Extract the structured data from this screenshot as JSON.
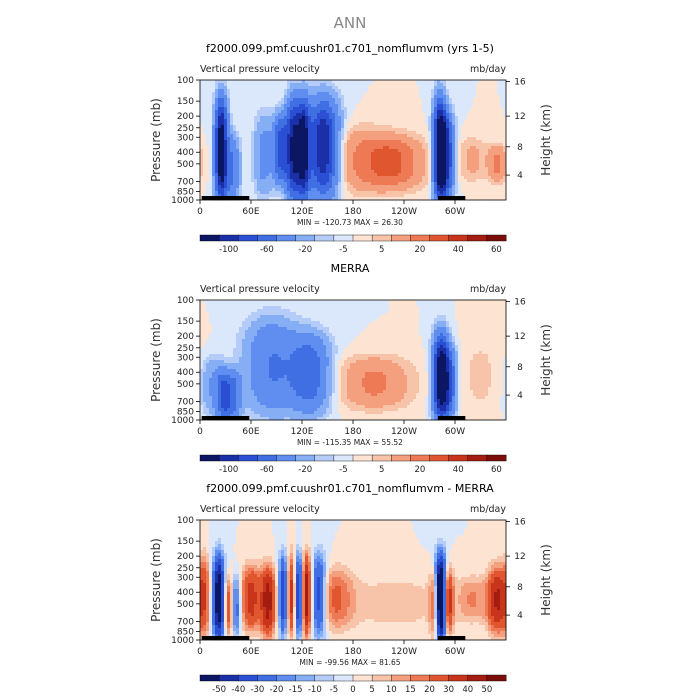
{
  "figure_title": "ANN",
  "colors": {
    "palette": [
      "#0b1763",
      "#1b2fa8",
      "#2a4fd2",
      "#3f6fe3",
      "#5f8ef0",
      "#86aef5",
      "#b4ccf7",
      "#dbe7fb",
      "#fce3d2",
      "#f8c4a9",
      "#f4a07f",
      "#ee7a55",
      "#e0562f",
      "#c9351a",
      "#a51d10",
      "#7a0d08"
    ]
  },
  "chart_data": [
    {
      "type": "heatmap",
      "title": "f2000.099.pmf.cuushr01.c701_nomflumvm (yrs 1-5)",
      "left_label": "Vertical pressure velocity",
      "right_label": "mb/day",
      "ylabel": "Pressure (mb)",
      "ylabel_right": "Height (km)",
      "pressure_ticks": [
        "100",
        "150",
        "200",
        "250",
        "300",
        "400",
        "500",
        "700",
        "850",
        "1000"
      ],
      "height_ticks": [
        "16",
        "12",
        "8",
        "4"
      ],
      "lon_ticks": [
        "0",
        "60E",
        "120E",
        "180",
        "120W",
        "60W"
      ],
      "min": "-120.73",
      "max": "26.30",
      "colorbar_labels": [
        "-100",
        "-60",
        "-20",
        "-5",
        "5",
        "20",
        "40",
        "60"
      ],
      "levels": [
        -100,
        -80,
        -60,
        -40,
        -20,
        -10,
        -5,
        0,
        5,
        10,
        20,
        30,
        40,
        50,
        60
      ],
      "features": [
        {
          "lon": 25,
          "p_top": 150,
          "p_bot": 1000,
          "w": 5,
          "amp": -120
        },
        {
          "lon": 38,
          "p_top": 300,
          "p_bot": 1000,
          "w": 6,
          "amp": -40
        },
        {
          "lon": 75,
          "p_top": 200,
          "p_bot": 900,
          "w": 8,
          "amp": -25
        },
        {
          "lon": 95,
          "p_top": 200,
          "p_bot": 700,
          "w": 6,
          "amp": -70
        },
        {
          "lon": 110,
          "p_top": 150,
          "p_bot": 950,
          "w": 6,
          "amp": -100
        },
        {
          "lon": 122,
          "p_top": 150,
          "p_bot": 950,
          "w": 5,
          "amp": -100
        },
        {
          "lon": 145,
          "p_top": 150,
          "p_bot": 900,
          "w": 12,
          "amp": -100
        },
        {
          "lon": 190,
          "p_top": 250,
          "p_bot": 850,
          "w": 30,
          "amp": 18
        },
        {
          "lon": 230,
          "p_top": 300,
          "p_bot": 800,
          "w": 25,
          "amp": 26
        },
        {
          "lon": 282,
          "p_top": 150,
          "p_bot": 1000,
          "w": 5,
          "amp": -120
        },
        {
          "lon": 290,
          "p_top": 200,
          "p_bot": 900,
          "w": 6,
          "amp": -80
        },
        {
          "lon": 320,
          "p_top": 300,
          "p_bot": 700,
          "w": 12,
          "amp": 12
        },
        {
          "lon": 350,
          "p_top": 350,
          "p_bot": 700,
          "w": 8,
          "amp": 22
        }
      ]
    },
    {
      "type": "heatmap",
      "title": "MERRA",
      "left_label": "Vertical pressure velocity",
      "right_label": "mb/day",
      "ylabel": "Pressure (mb)",
      "ylabel_right": "Height (km)",
      "pressure_ticks": [
        "100",
        "150",
        "200",
        "250",
        "300",
        "400",
        "500",
        "700",
        "850",
        "1000"
      ],
      "height_ticks": [
        "16",
        "12",
        "8",
        "4"
      ],
      "lon_ticks": [
        "0",
        "60E",
        "120E",
        "180",
        "120W",
        "60W"
      ],
      "min": "-115.35",
      "max": "55.52",
      "colorbar_labels": [
        "-100",
        "-60",
        "-20",
        "-5",
        "5",
        "20",
        "40",
        "60"
      ],
      "levels": [
        -100,
        -80,
        -60,
        -40,
        -20,
        -10,
        -5,
        0,
        5,
        10,
        20,
        30,
        40,
        50,
        60
      ],
      "features": [
        {
          "lon": 15,
          "p_top": 300,
          "p_bot": 900,
          "w": 10,
          "amp": -20
        },
        {
          "lon": 28,
          "p_top": 400,
          "p_bot": 1000,
          "w": 6,
          "amp": -60
        },
        {
          "lon": 40,
          "p_top": 400,
          "p_bot": 1000,
          "w": 6,
          "amp": -40
        },
        {
          "lon": 85,
          "p_top": 150,
          "p_bot": 850,
          "w": 22,
          "amp": -40
        },
        {
          "lon": 130,
          "p_top": 200,
          "p_bot": 850,
          "w": 16,
          "amp": -50
        },
        {
          "lon": 205,
          "p_top": 300,
          "p_bot": 800,
          "w": 30,
          "amp": 22
        },
        {
          "lon": 283,
          "p_top": 200,
          "p_bot": 1000,
          "w": 6,
          "amp": -115
        },
        {
          "lon": 293,
          "p_top": 250,
          "p_bot": 900,
          "w": 6,
          "amp": -60
        },
        {
          "lon": 330,
          "p_top": 200,
          "p_bot": 900,
          "w": 20,
          "amp": 6
        }
      ]
    },
    {
      "type": "heatmap",
      "title": "f2000.099.pmf.cuushr01.c701_nomflumvm - MERRA",
      "left_label": "Vertical pressure velocity",
      "right_label": "mb/day",
      "ylabel": "Pressure (mb)",
      "ylabel_right": "Height (km)",
      "pressure_ticks": [
        "100",
        "150",
        "200",
        "250",
        "300",
        "400",
        "500",
        "700",
        "850",
        "1000"
      ],
      "height_ticks": [
        "16",
        "12",
        "8",
        "4"
      ],
      "lon_ticks": [
        "0",
        "60E",
        "120E",
        "180",
        "120W",
        "60W"
      ],
      "min": "-99.56",
      "max": "81.65",
      "colorbar_labels": [
        "-50",
        "-40",
        "-30",
        "-20",
        "-15",
        "-10",
        "-5",
        "0",
        "5",
        "10",
        "15",
        "20",
        "30",
        "40",
        "50"
      ],
      "levels": [
        -50,
        -40,
        -30,
        -20,
        -15,
        -10,
        -5,
        0,
        5,
        10,
        15,
        20,
        30,
        40,
        50
      ],
      "features": [
        {
          "lon": 5,
          "p_top": 200,
          "p_bot": 900,
          "w": 5,
          "amp": 25
        },
        {
          "lon": 22,
          "p_top": 200,
          "p_bot": 1000,
          "w": 5,
          "amp": -60
        },
        {
          "lon": 34,
          "p_top": 300,
          "p_bot": 900,
          "w": 4,
          "amp": 30
        },
        {
          "lon": 42,
          "p_top": 300,
          "p_bot": 900,
          "w": 4,
          "amp": -30
        },
        {
          "lon": 60,
          "p_top": 250,
          "p_bot": 800,
          "w": 8,
          "amp": 35
        },
        {
          "lon": 80,
          "p_top": 250,
          "p_bot": 900,
          "w": 6,
          "amp": 45
        },
        {
          "lon": 98,
          "p_top": 200,
          "p_bot": 900,
          "w": 4,
          "amp": -40
        },
        {
          "lon": 108,
          "p_top": 200,
          "p_bot": 900,
          "w": 4,
          "amp": 40
        },
        {
          "lon": 116,
          "p_top": 200,
          "p_bot": 900,
          "w": 4,
          "amp": -50
        },
        {
          "lon": 125,
          "p_top": 200,
          "p_bot": 900,
          "w": 4,
          "amp": 50
        },
        {
          "lon": 140,
          "p_top": 200,
          "p_bot": 900,
          "w": 6,
          "amp": -40
        },
        {
          "lon": 160,
          "p_top": 250,
          "p_bot": 800,
          "w": 15,
          "amp": 20
        },
        {
          "lon": 230,
          "p_top": 300,
          "p_bot": 800,
          "w": 40,
          "amp": 8
        },
        {
          "lon": 276,
          "p_top": 250,
          "p_bot": 1000,
          "w": 4,
          "amp": 30
        },
        {
          "lon": 283,
          "p_top": 200,
          "p_bot": 1000,
          "w": 5,
          "amp": -80
        },
        {
          "lon": 292,
          "p_top": 250,
          "p_bot": 900,
          "w": 4,
          "amp": 40
        },
        {
          "lon": 320,
          "p_top": 300,
          "p_bot": 700,
          "w": 14,
          "amp": 15
        },
        {
          "lon": 350,
          "p_top": 250,
          "p_bot": 850,
          "w": 8,
          "amp": 40
        }
      ]
    }
  ]
}
